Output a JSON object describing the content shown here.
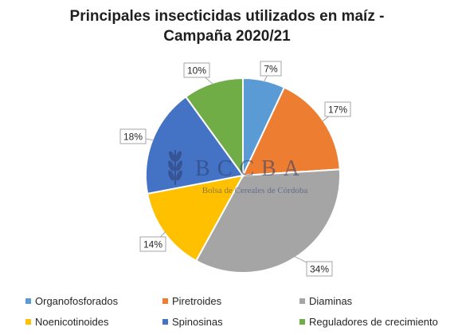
{
  "colors": {
    "organofosforados": "#5b9bd5",
    "piretroides": "#ed7d31",
    "diaminas": "#a5a5a5",
    "noenicotinoides": "#ffc000",
    "spinosinas": "#4472c4",
    "reguladores": "#70ad47"
  },
  "watermark": {
    "logo_text": "BCCBA",
    "subtitle": "Bolsa de Cereales de Córdoba"
  },
  "chart_data": {
    "type": "pie",
    "title_lines": [
      "Principales insecticidas utilizados en maíz -",
      "Campaña 2020/21"
    ],
    "slices": [
      {
        "name": "Organofosforados",
        "value": 7,
        "label": "7%",
        "color": "#5b9bd5"
      },
      {
        "name": "Piretroides",
        "value": 17,
        "label": "17%",
        "color": "#ed7d31"
      },
      {
        "name": "Diaminas",
        "value": 34,
        "label": "34%",
        "color": "#a5a5a5"
      },
      {
        "name": "Noenicotinoides",
        "value": 14,
        "label": "14%",
        "color": "#ffc000"
      },
      {
        "name": "Spinosinas",
        "value": 18,
        "label": "18%",
        "color": "#4472c4"
      },
      {
        "name": "Reguladores de crecimiento",
        "value": 10,
        "label": "10%",
        "color": "#70ad47"
      }
    ],
    "legend_position": "bottom"
  }
}
